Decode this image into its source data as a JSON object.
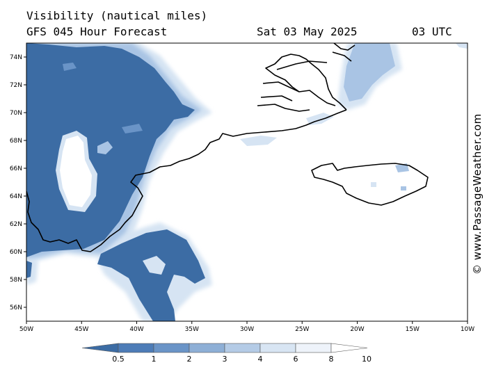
{
  "header": {
    "title_line1": "Visibility (nautical miles)",
    "title_line2": "GFS 045 Hour Forecast",
    "date": "Sat 03 May 2025",
    "time": "03 UTC"
  },
  "credit": "© www.PassageWeather.com",
  "map": {
    "lon_range": [
      -50,
      -10
    ],
    "lat_range": [
      55,
      75
    ],
    "lat_ticks": [
      {
        "value": 74,
        "label": "74N"
      },
      {
        "value": 72,
        "label": "72N"
      },
      {
        "value": 70,
        "label": "70N"
      },
      {
        "value": 68,
        "label": "68N"
      },
      {
        "value": 66,
        "label": "66N"
      },
      {
        "value": 64,
        "label": "64N"
      },
      {
        "value": 62,
        "label": "62N"
      },
      {
        "value": 60,
        "label": "60N"
      },
      {
        "value": 58,
        "label": "58N"
      },
      {
        "value": 56,
        "label": "56N"
      }
    ],
    "lon_ticks": [
      {
        "value": -50,
        "label": "50W"
      },
      {
        "value": -45,
        "label": "45W"
      },
      {
        "value": -40,
        "label": "40W"
      },
      {
        "value": -35,
        "label": "35W"
      },
      {
        "value": -30,
        "label": "30W"
      },
      {
        "value": -25,
        "label": "25W"
      },
      {
        "value": -20,
        "label": "20W"
      },
      {
        "value": -15,
        "label": "15W"
      },
      {
        "value": -10,
        "label": "10W"
      }
    ]
  },
  "legend": {
    "labels": [
      "0.5",
      "1",
      "2",
      "3",
      "4",
      "6",
      "8",
      "10"
    ],
    "colors": [
      "#3c6ca4",
      "#4d7cb7",
      "#6a94c7",
      "#8eafd6",
      "#b4cbe6",
      "#d8e5f3",
      "#eef3fa",
      "#ffffff"
    ]
  },
  "colors": {
    "very_low": "#3c6ca4",
    "low": "#6a94c7",
    "moderate": "#a9c4e4",
    "fair": "#d6e4f3",
    "coast": "#000000"
  }
}
